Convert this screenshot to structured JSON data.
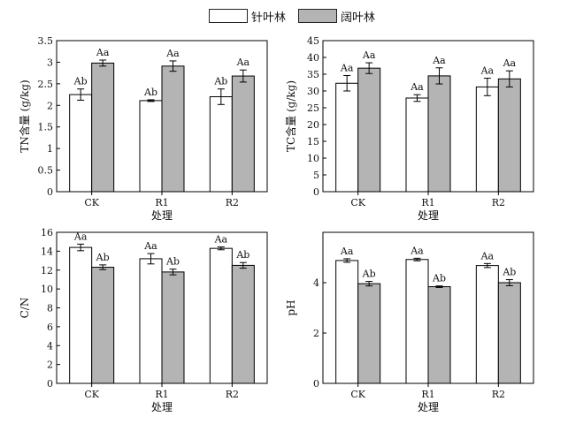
{
  "legend": [
    {
      "name": "针叶林",
      "color": "#ffffff"
    },
    {
      "name": "阔叶林",
      "color": "#b4b4b4"
    }
  ],
  "chart_data": [
    {
      "type": "bar",
      "categories": [
        "CK",
        "R1",
        "R2"
      ],
      "xlabel": "处理",
      "ylabel": "TN含量 (g/kg)",
      "ylim": [
        0,
        3.5
      ],
      "yticks": [
        0,
        0.5,
        1.0,
        1.5,
        2.0,
        2.5,
        3.0,
        3.5
      ],
      "series": [
        {
          "name": "针叶林",
          "values": [
            2.25,
            2.11,
            2.2
          ],
          "errors": [
            0.13,
            0.02,
            0.18
          ],
          "labels": [
            "Ab",
            "Ab",
            "Ab"
          ]
        },
        {
          "name": "阔叶林",
          "values": [
            2.98,
            2.91,
            2.68
          ],
          "errors": [
            0.07,
            0.12,
            0.14
          ],
          "labels": [
            "Aa",
            "Aa",
            "Aa"
          ]
        }
      ]
    },
    {
      "type": "bar",
      "categories": [
        "CK",
        "R1",
        "R2"
      ],
      "xlabel": "处理",
      "ylabel": "TC含量 (g/kg)",
      "ylim": [
        0,
        45
      ],
      "yticks": [
        0,
        5,
        10,
        15,
        20,
        25,
        30,
        35,
        40,
        45
      ],
      "series": [
        {
          "name": "针叶林",
          "values": [
            32.3,
            27.9,
            31.2
          ],
          "errors": [
            2.3,
            1.0,
            2.6
          ],
          "labels": [
            "Aa",
            "Aa",
            "Aa"
          ]
        },
        {
          "name": "阔叶林",
          "values": [
            36.8,
            34.5,
            33.6
          ],
          "errors": [
            1.6,
            2.4,
            2.4
          ],
          "labels": [
            "Aa",
            "Aa",
            "Aa"
          ]
        }
      ]
    },
    {
      "type": "bar",
      "categories": [
        "CK",
        "R1",
        "R2"
      ],
      "xlabel": "处理",
      "ylabel": "C/N",
      "ylim": [
        0,
        16
      ],
      "yticks": [
        0,
        2,
        4,
        6,
        8,
        10,
        12,
        14,
        16
      ],
      "series": [
        {
          "name": "针叶林",
          "values": [
            14.4,
            13.2,
            14.3
          ],
          "errors": [
            0.35,
            0.55,
            0.15
          ],
          "labels": [
            "Aa",
            "Aa",
            "Aa"
          ]
        },
        {
          "name": "阔叶林",
          "values": [
            12.3,
            11.8,
            12.5
          ],
          "errors": [
            0.25,
            0.3,
            0.3
          ],
          "labels": [
            "Ab",
            "Ab",
            "Ab"
          ]
        }
      ]
    },
    {
      "type": "bar",
      "categories": [
        "CK",
        "R1",
        "R2"
      ],
      "xlabel": "处理",
      "ylabel": "pH",
      "ylim": [
        0,
        6
      ],
      "yticks": [
        0,
        2,
        4
      ],
      "series": [
        {
          "name": "针叶林",
          "values": [
            4.88,
            4.92,
            4.68
          ],
          "errors": [
            0.07,
            0.05,
            0.08
          ],
          "labels": [
            "Aa",
            "Aa",
            "Aa"
          ]
        },
        {
          "name": "阔叶林",
          "values": [
            3.96,
            3.84,
            4.0
          ],
          "errors": [
            0.09,
            0.03,
            0.12
          ],
          "labels": [
            "Ab",
            "Ab",
            "Ab"
          ]
        }
      ]
    }
  ]
}
